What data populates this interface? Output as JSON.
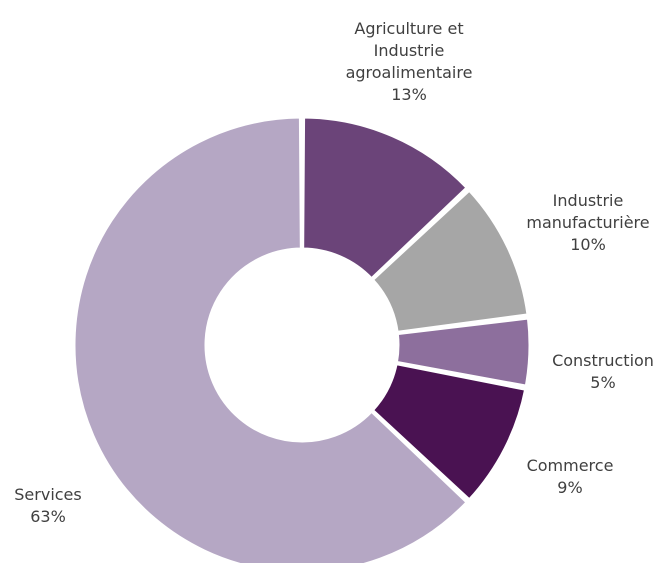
{
  "chart_data": {
    "type": "pie",
    "donut": true,
    "legend": "none",
    "slices": [
      {
        "lines": [
          "Agriculture et",
          "Industrie",
          "agroalimentaire"
        ],
        "value_label": "13%",
        "value": 13,
        "color": "#6b4479"
      },
      {
        "lines": [
          "Industrie",
          "manufacturière"
        ],
        "value_label": "10%",
        "value": 10,
        "color": "#a6a6a6"
      },
      {
        "lines": [
          "Construction"
        ],
        "value_label": "5%",
        "value": 5,
        "color": "#8d6f9d"
      },
      {
        "lines": [
          "Commerce"
        ],
        "value_label": "9%",
        "value": 9,
        "color": "#4a1252"
      },
      {
        "lines": [
          "Services"
        ],
        "value_label": "63%",
        "value": 63,
        "color": "#b5a7c4"
      }
    ]
  }
}
